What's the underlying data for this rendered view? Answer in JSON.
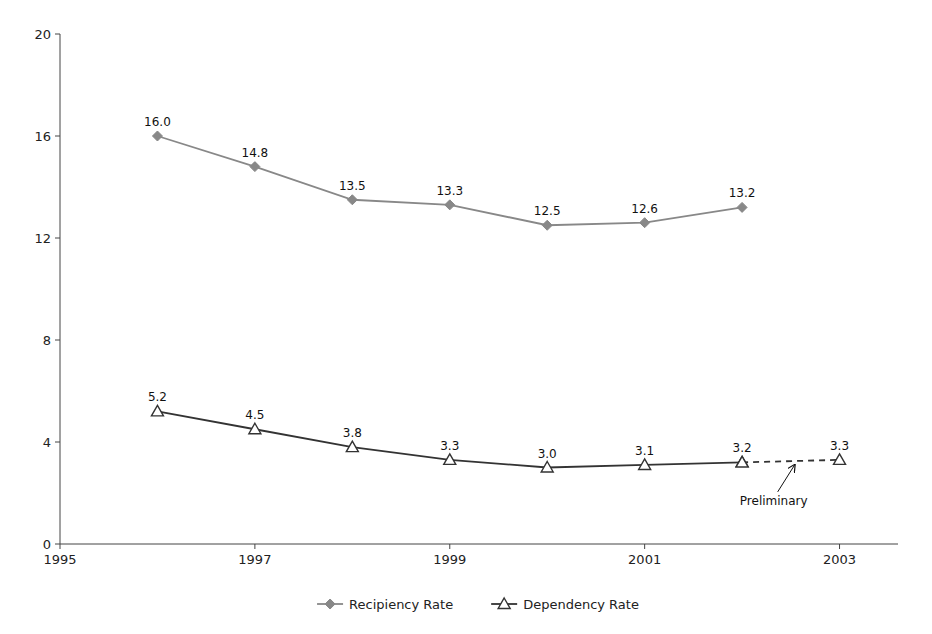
{
  "chart_data": {
    "type": "line",
    "series": [
      {
        "name": "Recipiency Rate",
        "color": "#888888",
        "marker": "diamond",
        "line_style": "solid",
        "x": [
          1996,
          1997,
          1998,
          1999,
          2000,
          2001,
          2002
        ],
        "values": [
          16.0,
          14.8,
          13.5,
          13.3,
          12.5,
          12.6,
          13.2
        ],
        "value_labels": [
          "16.0",
          "14.8",
          "13.5",
          "13.3",
          "12.5",
          "12.6",
          "13.2"
        ]
      },
      {
        "name": "Dependency Rate",
        "color": "#333333",
        "marker": "triangle-open",
        "line_style": "solid",
        "x": [
          1996,
          1997,
          1998,
          1999,
          2000,
          2001,
          2002
        ],
        "values": [
          5.2,
          4.5,
          3.8,
          3.3,
          3.0,
          3.1,
          3.2
        ],
        "value_labels": [
          "5.2",
          "4.5",
          "3.8",
          "3.3",
          "3.0",
          "3.1",
          "3.2"
        ]
      },
      {
        "color": "#333333",
        "marker": "triangle-open",
        "line_style": "dashed",
        "x": [
          2002,
          2003
        ],
        "values": [
          3.2,
          3.3
        ],
        "value_labels": [
          "3.2",
          "3.3"
        ]
      }
    ],
    "annotations": [
      {
        "text": "Preliminary",
        "x": 2002.55,
        "y": 3.22
      }
    ],
    "xlim": [
      1995,
      2003.6
    ],
    "xticks": [
      1995,
      1997,
      1999,
      2001,
      2003
    ],
    "ylim": [
      0,
      20
    ],
    "yticks": [
      0,
      4,
      8,
      12,
      16,
      20
    ],
    "grid": false,
    "legend": "bottom",
    "data_labels": true
  }
}
